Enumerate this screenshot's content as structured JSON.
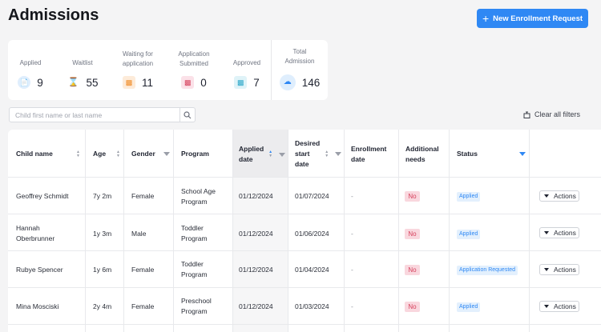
{
  "header": {
    "title": "Admissions",
    "new_button_label": "New Enrollment Request"
  },
  "stats": [
    {
      "label": "Applied",
      "value": "9",
      "icon": "document-icon",
      "color": "#2f88f4",
      "bg": "#dfeefd"
    },
    {
      "label": "Waitlist",
      "value": "55",
      "icon": "hourglass-icon",
      "color": "#6b6f7a",
      "bg": "#ffffff"
    },
    {
      "label": "Waiting for application",
      "value": "11",
      "icon": "document-pending-icon",
      "color": "#f08a24",
      "bg": "#fdebd9"
    },
    {
      "label": "Application Submitted",
      "value": "0",
      "icon": "document-submitted-icon",
      "color": "#d6405c",
      "bg": "#fbe1e8"
    },
    {
      "label": "Approved",
      "value": "7",
      "icon": "document-approved-icon",
      "color": "#2aa6c8",
      "bg": "#dff3f8"
    },
    {
      "label": "Total Admission",
      "value": "146",
      "icon": "cloud-icon",
      "color": "#2f88f4",
      "bg": "#dfeefd"
    }
  ],
  "search": {
    "placeholder": "Child first name or last name"
  },
  "clear_filters_label": "Clear all filters",
  "table": {
    "columns": {
      "child_name": "Child name",
      "age": "Age",
      "gender": "Gender",
      "program": "Program",
      "applied_date": "Applied date",
      "desired_start_date": "Desired start date",
      "enrollment_date": "Enrollment date",
      "additional_needs": "Additional needs",
      "status": "Status"
    },
    "rows": [
      {
        "name": "Geoffrey Schmidt",
        "age": "7y 2m",
        "gender": "Female",
        "program": "School Age Program",
        "applied": "01/12/2024",
        "desired": "01/07/2024",
        "enrollment": "-",
        "needs": "No",
        "status": "Applied",
        "action": "Actions"
      },
      {
        "name": "Hannah Oberbrunner",
        "age": "1y 3m",
        "gender": "Male",
        "program": "Toddler Program",
        "applied": "01/12/2024",
        "desired": "01/06/2024",
        "enrollment": "-",
        "needs": "No",
        "status": "Applied",
        "action": "Actions"
      },
      {
        "name": "Rubye Spencer",
        "age": "1y 6m",
        "gender": "Female",
        "program": "Toddler Program",
        "applied": "01/12/2024",
        "desired": "01/04/2024",
        "enrollment": "-",
        "needs": "No",
        "status": "Application Requested",
        "action": "Actions"
      },
      {
        "name": "Mina Mosciski",
        "age": "2y 4m",
        "gender": "Female",
        "program": "Preschool Program",
        "applied": "01/12/2024",
        "desired": "01/03/2024",
        "enrollment": "-",
        "needs": "No",
        "status": "Applied",
        "action": "Actions"
      }
    ]
  }
}
